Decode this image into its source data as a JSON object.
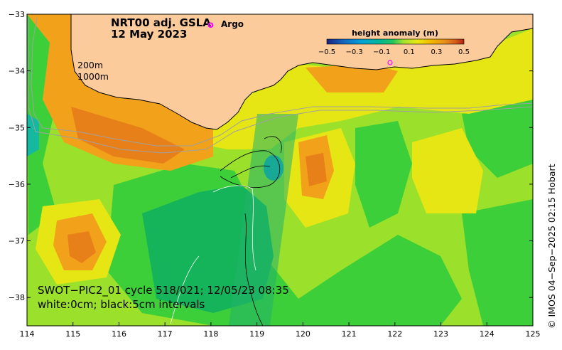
{
  "title": {
    "line1": "NRT00 adj. GSLA",
    "line2": "12 May 2023"
  },
  "legend": {
    "argo_symbol": "o",
    "argo_label": "Argo",
    "argo_color": "#ff00ff"
  },
  "colorbar": {
    "title": "height anomaly (m)",
    "ticks": [
      "−0.5",
      "−0.3",
      "−0.1",
      "0.1",
      "0.3",
      "0.5"
    ],
    "colors": [
      "#1a237e",
      "#1565c0",
      "#00a0d8",
      "#00b89a",
      "#22c55e",
      "#a6e22e",
      "#e8e815",
      "#f5b800",
      "#e8901a",
      "#d85a1a",
      "#b01f14"
    ]
  },
  "isobaths": {
    "shallow": "200m",
    "deep": "1000m"
  },
  "axes": {
    "x_ticks": [
      "114",
      "115",
      "116",
      "117",
      "118",
      "119",
      "120",
      "121",
      "122",
      "123",
      "124",
      "125"
    ],
    "y_ticks": [
      "−33",
      "−34",
      "−35",
      "−36",
      "−37",
      "−38"
    ],
    "lon_range": [
      114,
      125
    ],
    "lat_range": [
      -38.5,
      -33
    ]
  },
  "annotations": {
    "swot_line": "SWOT−PIC2_01 cycle 518/021; 12/05/23 08:35",
    "contour_line": "white:0cm; black:5cm intervals"
  },
  "credit": "© IMOS 04−Sep−2025 02:15 Hobart",
  "colors": {
    "land": "#fbcb9b",
    "coast": "#000000",
    "isobath": "#a0a0a0"
  }
}
